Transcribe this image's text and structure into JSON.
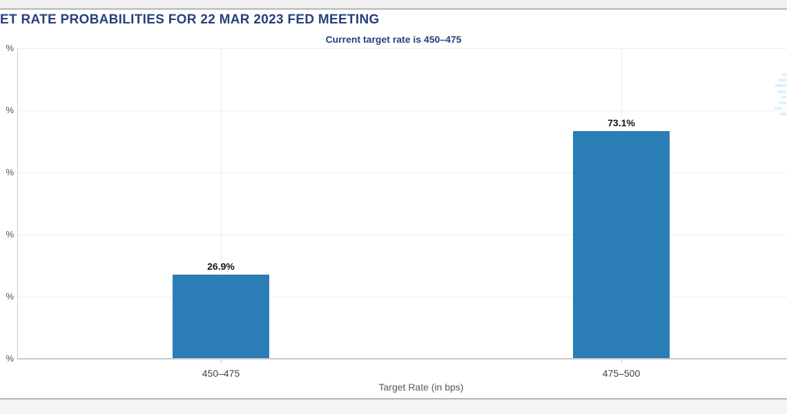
{
  "chart_data": {
    "type": "bar",
    "title": "ET RATE PROBABILITIES FOR 22 MAR 2023 FED MEETING",
    "subtitle": "Current target rate is 450–475",
    "categories": [
      "450–475",
      "475–500"
    ],
    "values": [
      26.9,
      73.1
    ],
    "value_labels": [
      "26.9%",
      "73.1%"
    ],
    "xlabel": "Target Rate (in bps)",
    "ylabel": "",
    "ylim": [
      0,
      100
    ],
    "ytick_step": 20,
    "ytick_labels_visible": [
      "%",
      "%",
      "%",
      "%",
      "%",
      "%"
    ],
    "grid": true,
    "legend": false,
    "bar_color": "#2b7db6",
    "title_color": "#26407c",
    "grid_color": "#ededed",
    "watermark_color": "#d9f4f9"
  }
}
